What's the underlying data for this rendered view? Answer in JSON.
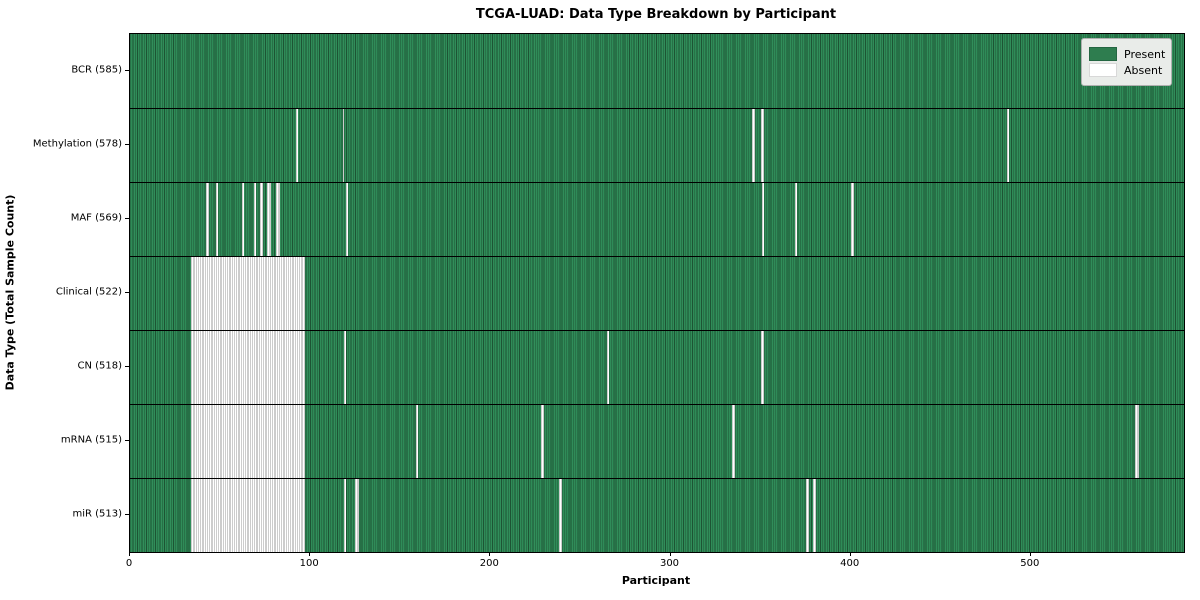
{
  "title": "TCGA-LUAD: Data Type Breakdown by Participant",
  "xlabel": "Participant",
  "ylabel": "Data Type (Total Sample Count)",
  "legend": {
    "present_label": "Present",
    "absent_label": "Absent"
  },
  "colors": {
    "present_green": "#2e8b57",
    "present_edge": "#1d5434",
    "absent_white": "#ffffff",
    "absent_edge": "#9a9a9a",
    "legend_background": "#e9ece9"
  },
  "chart_data": {
    "type": "heatmap",
    "title": "TCGA-LUAD: Data Type Breakdown by Participant",
    "xlabel": "Participant",
    "ylabel": "Data Type (Total Sample Count)",
    "x_ticks": [
      0,
      100,
      200,
      300,
      400,
      500
    ],
    "x_max": 585,
    "legend_entries": [
      "Present",
      "Absent"
    ],
    "legend_position": "upper right",
    "rows": [
      {
        "label": "BCR (585)",
        "name": "BCR",
        "total": 585,
        "absent_ranges": []
      },
      {
        "label": "Methylation (578)",
        "name": "Methylation",
        "total": 578,
        "absent_ranges": [
          [
            92,
            1
          ],
          [
            118,
            1
          ],
          [
            345,
            2
          ],
          [
            350,
            2
          ],
          [
            487,
            1
          ]
        ]
      },
      {
        "label": "MAF (569)",
        "name": "MAF",
        "total": 569,
        "absent_ranges": [
          [
            42,
            2
          ],
          [
            48,
            1
          ],
          [
            62,
            1
          ],
          [
            69,
            1
          ],
          [
            72,
            2
          ],
          [
            76,
            2
          ],
          [
            81,
            2
          ],
          [
            120,
            1
          ],
          [
            351,
            1
          ],
          [
            369,
            1
          ],
          [
            400,
            2
          ]
        ]
      },
      {
        "label": "Clinical (522)",
        "name": "Clinical",
        "total": 522,
        "absent_ranges": [
          [
            34,
            63
          ]
        ]
      },
      {
        "label": "CN (518)",
        "name": "CN",
        "total": 518,
        "absent_ranges": [
          [
            34,
            63
          ],
          [
            119,
            1
          ],
          [
            265,
            1
          ],
          [
            350,
            2
          ]
        ]
      },
      {
        "label": "mRNA (515)",
        "name": "mRNA",
        "total": 515,
        "absent_ranges": [
          [
            34,
            63
          ],
          [
            159,
            1
          ],
          [
            228,
            2
          ],
          [
            334,
            2
          ],
          [
            558,
            2
          ]
        ]
      },
      {
        "label": "miR (513)",
        "name": "miR",
        "total": 513,
        "absent_ranges": [
          [
            34,
            63
          ],
          [
            119,
            1
          ],
          [
            125,
            2
          ],
          [
            238,
            2
          ],
          [
            375,
            2
          ],
          [
            379,
            2
          ]
        ]
      }
    ]
  }
}
